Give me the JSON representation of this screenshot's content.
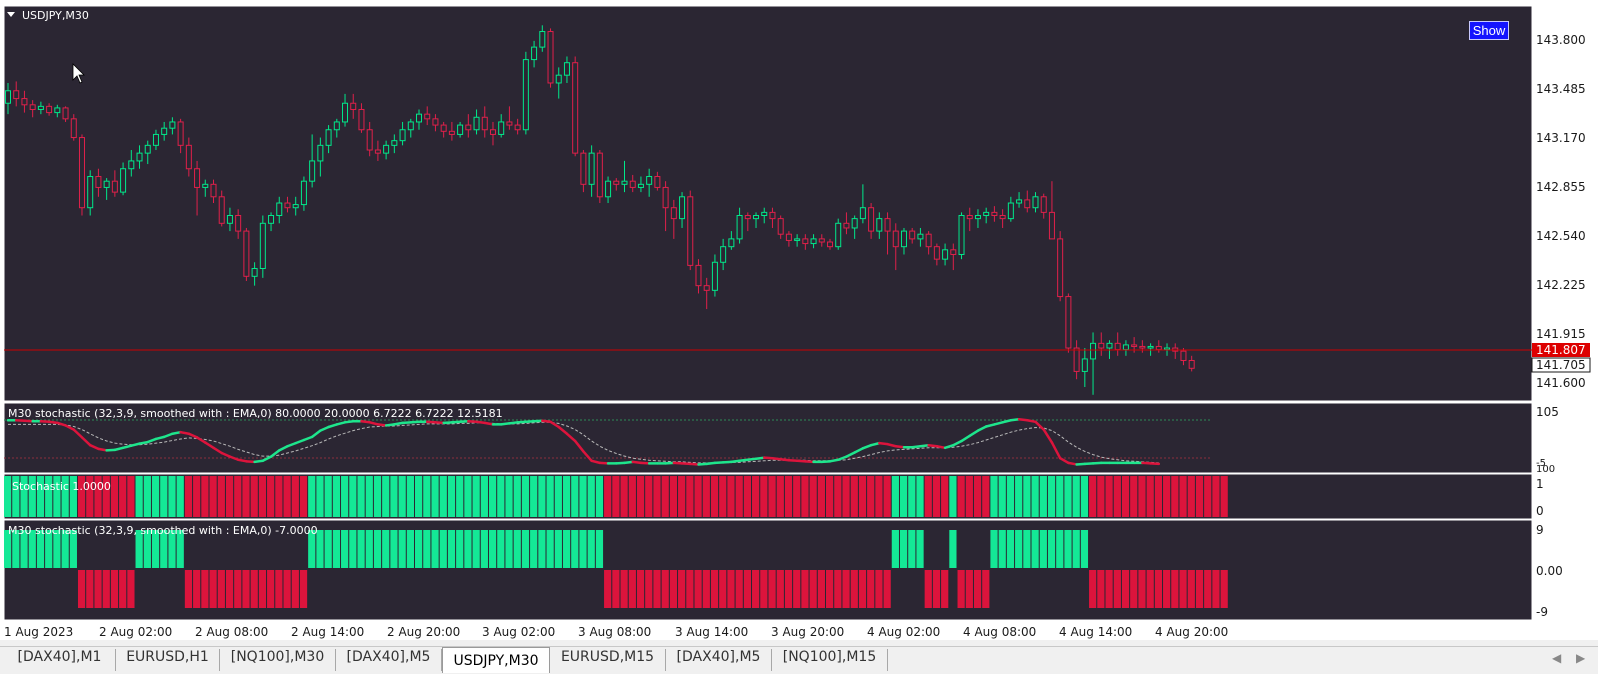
{
  "chart": {
    "symbol_label": "USDJPY,M30",
    "show_button": "Show",
    "price_axis": [
      "143.800",
      "143.485",
      "143.170",
      "142.855",
      "142.540",
      "142.225",
      "141.915",
      "141.600"
    ],
    "bid_price": "141.807",
    "ask_price": "141.705",
    "indicator1": {
      "label": "M30 stochastic (32,3,9, smoothed with : EMA,0) 80.0000 20.0000 6.7222 6.7222 12.5181",
      "axis_top": "105",
      "axis_bottom": "-5",
      "axis_bottom2": "100"
    },
    "indicator2": {
      "label": "Stochastic 1.0000",
      "axis_top": "1",
      "axis_bottom": "0"
    },
    "indicator3": {
      "label": "M30 stochastic (32,3,9, smoothed with : EMA,0) -7.0000",
      "axis_top": "9",
      "axis_mid": "0.00",
      "axis_bottom": "-9"
    },
    "time_axis": [
      "1 Aug 2023",
      "2 Aug 02:00",
      "2 Aug 08:00",
      "2 Aug 14:00",
      "2 Aug 20:00",
      "3 Aug 02:00",
      "3 Aug 08:00",
      "3 Aug 14:00",
      "3 Aug 20:00",
      "4 Aug 02:00",
      "4 Aug 08:00",
      "4 Aug 14:00",
      "4 Aug 20:00"
    ],
    "colors": {
      "background": "#2b2633",
      "bull": "#00e88a",
      "bear": "#e0204a",
      "bid_line": "#cc0000",
      "bar_green": "#14e896",
      "bar_red": "#dc143c",
      "stoch_line_up": "#1ee58c",
      "stoch_line_down": "#dc143c"
    },
    "candles_ohlc": [
      [
        143.42,
        143.55,
        143.35,
        143.5
      ],
      [
        143.5,
        143.56,
        143.4,
        143.45
      ],
      [
        143.45,
        143.5,
        143.36,
        143.41
      ],
      [
        143.41,
        143.44,
        143.33,
        143.38
      ],
      [
        143.38,
        143.43,
        143.35,
        143.4
      ],
      [
        143.4,
        143.42,
        143.34,
        143.36
      ],
      [
        143.36,
        143.41,
        143.33,
        143.39
      ],
      [
        143.39,
        143.4,
        143.3,
        143.32
      ],
      [
        143.32,
        143.35,
        143.18,
        143.2
      ],
      [
        143.2,
        143.22,
        142.7,
        142.75
      ],
      [
        142.75,
        142.99,
        142.7,
        142.95
      ],
      [
        142.95,
        143.0,
        142.82,
        142.88
      ],
      [
        142.88,
        142.94,
        142.8,
        142.92
      ],
      [
        142.92,
        142.99,
        142.82,
        142.85
      ],
      [
        142.85,
        143.04,
        142.83,
        143.0
      ],
      [
        143.0,
        143.12,
        142.95,
        143.05
      ],
      [
        143.05,
        143.15,
        143.0,
        143.1
      ],
      [
        143.1,
        143.18,
        143.03,
        143.15
      ],
      [
        143.15,
        143.25,
        143.12,
        143.22
      ],
      [
        143.22,
        143.3,
        143.18,
        143.26
      ],
      [
        143.26,
        143.33,
        143.22,
        143.3
      ],
      [
        143.3,
        143.32,
        143.1,
        143.15
      ],
      [
        143.15,
        143.2,
        142.95,
        143.0
      ],
      [
        143.0,
        143.05,
        142.7,
        142.88
      ],
      [
        142.88,
        142.93,
        142.82,
        142.9
      ],
      [
        142.9,
        142.93,
        142.78,
        142.82
      ],
      [
        142.82,
        142.86,
        142.63,
        142.65
      ],
      [
        142.65,
        142.75,
        142.6,
        142.7
      ],
      [
        142.7,
        142.74,
        142.55,
        142.6
      ],
      [
        142.6,
        142.62,
        142.28,
        142.31
      ],
      [
        142.31,
        142.4,
        142.25,
        142.36
      ],
      [
        142.36,
        142.7,
        142.3,
        142.65
      ],
      [
        142.65,
        142.72,
        142.6,
        142.7
      ],
      [
        142.7,
        142.82,
        142.65,
        142.78
      ],
      [
        142.78,
        142.82,
        142.72,
        142.75
      ],
      [
        142.75,
        142.82,
        142.7,
        142.77
      ],
      [
        142.77,
        142.95,
        142.73,
        142.92
      ],
      [
        142.92,
        143.22,
        142.88,
        143.05
      ],
      [
        143.05,
        143.2,
        142.95,
        143.15
      ],
      [
        143.15,
        143.28,
        143.1,
        143.25
      ],
      [
        143.25,
        143.32,
        143.2,
        143.3
      ],
      [
        143.3,
        143.48,
        143.27,
        143.42
      ],
      [
        143.42,
        143.48,
        143.32,
        143.38
      ],
      [
        143.38,
        143.42,
        143.23,
        143.25
      ],
      [
        143.25,
        143.3,
        143.08,
        143.12
      ],
      [
        143.12,
        143.18,
        143.05,
        143.1
      ],
      [
        143.1,
        143.18,
        143.06,
        143.15
      ],
      [
        143.15,
        143.22,
        143.1,
        143.18
      ],
      [
        143.18,
        143.3,
        143.15,
        143.25
      ],
      [
        143.25,
        143.32,
        143.2,
        143.3
      ],
      [
        143.3,
        143.38,
        143.25,
        143.35
      ],
      [
        143.35,
        143.4,
        143.28,
        143.32
      ],
      [
        143.32,
        143.35,
        143.24,
        143.28
      ],
      [
        143.28,
        143.3,
        143.2,
        143.24
      ],
      [
        143.24,
        143.3,
        143.18,
        143.22
      ],
      [
        143.22,
        143.3,
        143.2,
        143.28
      ],
      [
        143.28,
        143.35,
        143.2,
        143.25
      ],
      [
        143.25,
        143.38,
        143.22,
        143.33
      ],
      [
        143.33,
        143.4,
        143.2,
        143.25
      ],
      [
        143.25,
        143.3,
        143.15,
        143.22
      ],
      [
        143.22,
        143.35,
        143.2,
        143.3
      ],
      [
        143.3,
        143.4,
        143.25,
        143.28
      ],
      [
        143.28,
        143.32,
        143.22,
        143.25
      ],
      [
        143.25,
        143.75,
        143.22,
        143.7
      ],
      [
        143.7,
        143.82,
        143.65,
        143.78
      ],
      [
        143.78,
        143.92,
        143.75,
        143.88
      ],
      [
        143.88,
        143.9,
        143.52,
        143.55
      ],
      [
        143.55,
        143.65,
        143.45,
        143.6
      ],
      [
        143.6,
        143.72,
        143.55,
        143.68
      ],
      [
        143.68,
        143.72,
        143.08,
        143.1
      ],
      [
        143.1,
        143.12,
        142.85,
        142.9
      ],
      [
        142.9,
        143.15,
        142.82,
        143.1
      ],
      [
        143.1,
        143.12,
        142.78,
        142.82
      ],
      [
        142.82,
        142.95,
        142.78,
        142.92
      ],
      [
        142.92,
        142.94,
        142.86,
        142.9
      ],
      [
        142.9,
        143.05,
        142.85,
        142.92
      ],
      [
        142.92,
        142.96,
        142.85,
        142.88
      ],
      [
        142.88,
        142.95,
        142.85,
        142.9
      ],
      [
        142.9,
        143.0,
        142.82,
        142.95
      ],
      [
        142.95,
        142.98,
        142.86,
        142.88
      ],
      [
        142.88,
        142.92,
        142.6,
        142.75
      ],
      [
        142.75,
        142.8,
        142.55,
        142.68
      ],
      [
        142.68,
        142.85,
        142.62,
        142.82
      ],
      [
        142.82,
        142.86,
        142.35,
        142.38
      ],
      [
        142.38,
        142.42,
        142.2,
        142.25
      ],
      [
        142.25,
        142.3,
        142.1,
        142.22
      ],
      [
        142.22,
        142.45,
        142.18,
        142.4
      ],
      [
        142.4,
        142.55,
        142.35,
        142.5
      ],
      [
        142.5,
        142.6,
        142.48,
        142.55
      ],
      [
        142.55,
        142.75,
        142.52,
        142.7
      ],
      [
        142.7,
        142.72,
        142.6,
        142.68
      ],
      [
        142.68,
        142.72,
        142.62,
        142.7
      ],
      [
        142.7,
        142.75,
        142.65,
        142.72
      ],
      [
        142.72,
        142.75,
        142.62,
        142.68
      ],
      [
        142.68,
        142.7,
        142.55,
        142.58
      ],
      [
        142.58,
        142.6,
        142.5,
        142.54
      ],
      [
        142.54,
        142.58,
        142.5,
        142.55
      ],
      [
        142.55,
        142.58,
        142.48,
        142.52
      ],
      [
        142.52,
        142.58,
        142.49,
        142.55
      ],
      [
        142.55,
        142.58,
        142.5,
        142.53
      ],
      [
        142.53,
        142.55,
        142.48,
        142.5
      ],
      [
        142.5,
        142.68,
        142.48,
        142.65
      ],
      [
        142.65,
        142.72,
        142.58,
        142.62
      ],
      [
        142.62,
        142.7,
        142.55,
        142.68
      ],
      [
        142.68,
        142.9,
        142.65,
        142.75
      ],
      [
        142.75,
        142.78,
        142.55,
        142.6
      ],
      [
        142.6,
        142.72,
        142.55,
        142.68
      ],
      [
        142.68,
        142.72,
        142.45,
        142.6
      ],
      [
        142.6,
        142.65,
        142.35,
        142.5
      ],
      [
        142.5,
        142.62,
        142.45,
        142.6
      ],
      [
        142.6,
        142.62,
        142.52,
        142.55
      ],
      [
        142.55,
        142.62,
        142.5,
        142.58
      ],
      [
        142.58,
        142.6,
        142.45,
        142.5
      ],
      [
        142.5,
        142.52,
        142.38,
        142.42
      ],
      [
        142.42,
        142.52,
        142.38,
        142.48
      ],
      [
        142.48,
        142.52,
        142.35,
        142.45
      ],
      [
        142.45,
        142.72,
        142.42,
        142.7
      ],
      [
        142.7,
        142.75,
        142.6,
        142.68
      ],
      [
        142.68,
        142.74,
        142.62,
        142.7
      ],
      [
        142.7,
        142.75,
        142.65,
        142.72
      ],
      [
        142.72,
        142.76,
        142.66,
        142.7
      ],
      [
        142.7,
        142.74,
        142.62,
        142.68
      ],
      [
        142.68,
        142.82,
        142.66,
        142.78
      ],
      [
        142.78,
        142.85,
        142.75,
        142.8
      ],
      [
        142.8,
        142.86,
        142.72,
        142.75
      ],
      [
        142.75,
        142.85,
        142.72,
        142.82
      ],
      [
        142.82,
        142.84,
        142.68,
        142.72
      ],
      [
        142.72,
        142.92,
        142.6,
        142.55
      ],
      [
        142.55,
        142.6,
        142.15,
        142.18
      ],
      [
        142.18,
        142.2,
        141.82,
        141.85
      ],
      [
        141.85,
        141.9,
        141.65,
        141.7
      ],
      [
        141.7,
        141.85,
        141.6,
        141.78
      ],
      [
        141.78,
        141.95,
        141.55,
        141.88
      ],
      [
        141.88,
        141.95,
        141.8,
        141.85
      ],
      [
        141.85,
        141.9,
        141.78,
        141.88
      ],
      [
        141.88,
        141.95,
        141.8,
        141.84
      ],
      [
        141.84,
        141.9,
        141.8,
        141.87
      ],
      [
        141.87,
        141.92,
        141.82,
        141.86
      ],
      [
        141.86,
        141.9,
        141.82,
        141.85
      ],
      [
        141.85,
        141.88,
        141.8,
        141.86
      ],
      [
        141.86,
        141.9,
        141.82,
        141.84
      ],
      [
        141.84,
        141.88,
        141.8,
        141.85
      ],
      [
        141.85,
        141.88,
        141.78,
        141.83
      ],
      [
        141.83,
        141.85,
        141.74,
        141.77
      ],
      [
        141.77,
        141.8,
        141.7,
        141.72
      ]
    ],
    "stoch_main": [
      88,
      88,
      87,
      86,
      86,
      85,
      83,
      78,
      70,
      55,
      40,
      33,
      30,
      31,
      35,
      39,
      43,
      46,
      52,
      56,
      62,
      65,
      62,
      55,
      45,
      35,
      25,
      18,
      12,
      9,
      8,
      10,
      18,
      30,
      38,
      44,
      50,
      56,
      68,
      75,
      80,
      84,
      86,
      86,
      84,
      80,
      78,
      80,
      83,
      84,
      85,
      85,
      84,
      83,
      84,
      85,
      86,
      85,
      83,
      80,
      80,
      82,
      84,
      85,
      86,
      87,
      85,
      75,
      62,
      48,
      28,
      10,
      6,
      5,
      5,
      6,
      8,
      6,
      5,
      5,
      5,
      6,
      5,
      4,
      3,
      4,
      6,
      7,
      8,
      10,
      12,
      14,
      16,
      15,
      13,
      11,
      10,
      9,
      8,
      8,
      9,
      12,
      18,
      26,
      34,
      40,
      44,
      42,
      38,
      36,
      36,
      38,
      40,
      38,
      35,
      40,
      48,
      58,
      68,
      76,
      80,
      84,
      88,
      90,
      88,
      85,
      70,
      45,
      15,
      6,
      3,
      4,
      5,
      6,
      6,
      6,
      6,
      6,
      6,
      5,
      4
    ],
    "stoch_signal": [
      80,
      80,
      80,
      80,
      80,
      80,
      80,
      79,
      76,
      70,
      62,
      54,
      48,
      44,
      42,
      41,
      41,
      42,
      44,
      46,
      49,
      52,
      54,
      53,
      51,
      48,
      43,
      38,
      32,
      27,
      22,
      19,
      19,
      21,
      25,
      29,
      34,
      39,
      45,
      52,
      58,
      63,
      68,
      72,
      75,
      76,
      77,
      77,
      78,
      79,
      80,
      81,
      81,
      81,
      81,
      82,
      82,
      83,
      83,
      82,
      81,
      81,
      81,
      82,
      83,
      84,
      84,
      82,
      77,
      70,
      60,
      48,
      38,
      30,
      24,
      19,
      15,
      13,
      11,
      10,
      9,
      8,
      8,
      7,
      6,
      6,
      6,
      6,
      7,
      7,
      8,
      9,
      10,
      11,
      11,
      11,
      11,
      11,
      10,
      10,
      10,
      11,
      12,
      15,
      18,
      22,
      26,
      29,
      31,
      32,
      33,
      34,
      35,
      35,
      35,
      36,
      38,
      41,
      45,
      50,
      55,
      60,
      65,
      69,
      72,
      74,
      73,
      68,
      58,
      46,
      36,
      28,
      22,
      17,
      14,
      12,
      10,
      9,
      8,
      7,
      6
    ],
    "bar_states": [
      1,
      1,
      1,
      1,
      1,
      1,
      1,
      1,
      1,
      0,
      0,
      0,
      0,
      0,
      0,
      0,
      1,
      1,
      1,
      1,
      1,
      1,
      0,
      0,
      0,
      0,
      0,
      0,
      0,
      0,
      0,
      0,
      0,
      0,
      0,
      0,
      0,
      1,
      1,
      1,
      1,
      1,
      1,
      1,
      1,
      1,
      1,
      1,
      1,
      1,
      1,
      1,
      1,
      1,
      1,
      1,
      1,
      1,
      1,
      1,
      1,
      1,
      1,
      1,
      1,
      1,
      1,
      1,
      1,
      1,
      1,
      1,
      1,
      0,
      0,
      0,
      0,
      0,
      0,
      0,
      0,
      0,
      0,
      0,
      0,
      0,
      0,
      0,
      0,
      0,
      0,
      0,
      0,
      0,
      0,
      0,
      0,
      0,
      0,
      0,
      0,
      0,
      0,
      0,
      0,
      0,
      0,
      0,
      1,
      1,
      1,
      1,
      0,
      0,
      0,
      1,
      0,
      0,
      0,
      0,
      1,
      1,
      1,
      1,
      1,
      1,
      1,
      1,
      1,
      1,
      1,
      1,
      0,
      0,
      0,
      0,
      0,
      0,
      0,
      0,
      0,
      0,
      0,
      0,
      0,
      0,
      0,
      0,
      0
    ]
  },
  "tabs": [
    "[DAX40],M1",
    "EURUSD,H1",
    "[NQ100],M30",
    "[DAX40],M5",
    "USDJPY,M30",
    "EURUSD,M15",
    "[DAX40],M5",
    "[NQ100],M15"
  ],
  "active_tab": "USDJPY,M30"
}
